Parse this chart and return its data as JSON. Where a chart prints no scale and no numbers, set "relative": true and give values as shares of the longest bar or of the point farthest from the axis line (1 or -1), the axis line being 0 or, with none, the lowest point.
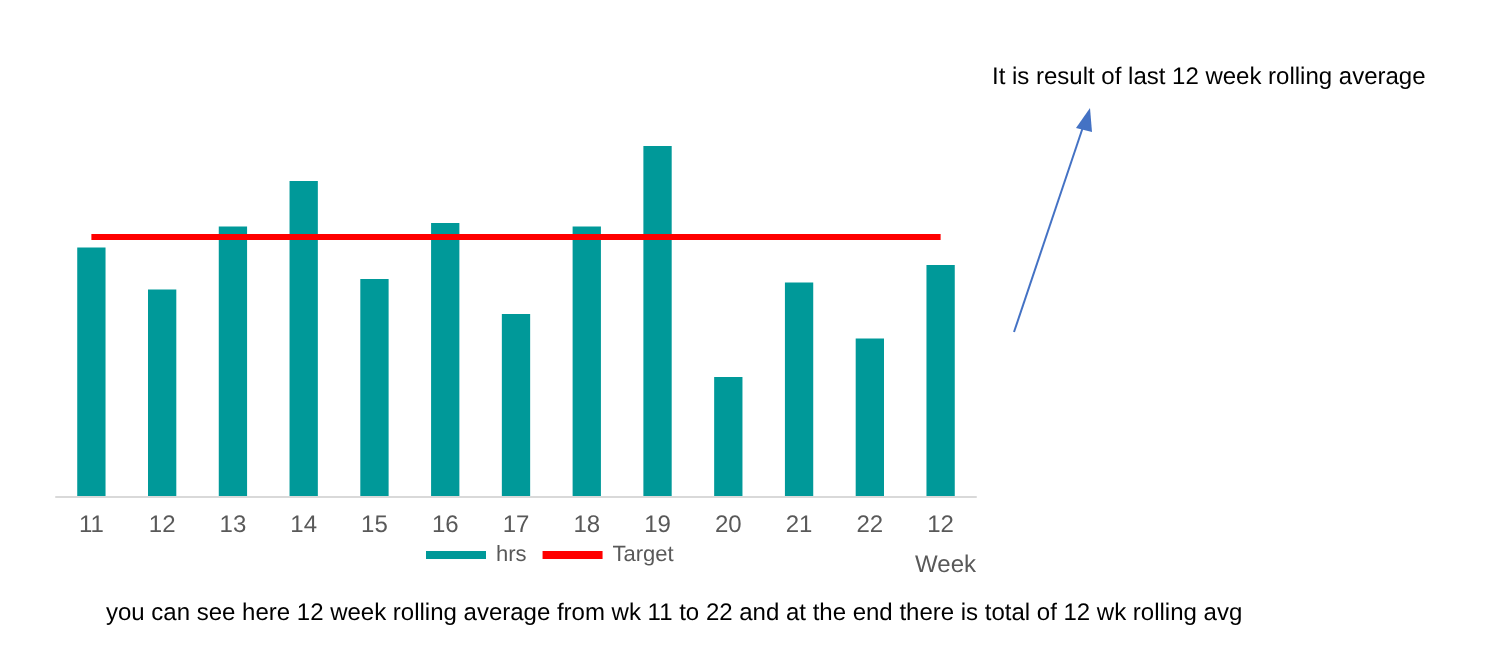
{
  "chart_data": {
    "type": "bar",
    "relative": true,
    "xlabel": "Week",
    "categories": [
      "11",
      "12",
      "13",
      "14",
      "15",
      "16",
      "17",
      "18",
      "19",
      "20",
      "21",
      "22",
      "12"
    ],
    "series": [
      {
        "name": "hrs",
        "color": "#009999",
        "values": [
          0.71,
          0.59,
          0.77,
          0.9,
          0.62,
          0.78,
          0.52,
          0.77,
          1,
          0.34,
          0.61,
          0.45,
          0.66
        ]
      },
      {
        "name": "Target",
        "type": "line",
        "color": "#ff0000",
        "values": [
          0.74,
          0.74,
          0.74,
          0.74,
          0.74,
          0.74,
          0.74,
          0.74,
          0.74,
          0.74,
          0.74,
          0.74,
          0.74
        ]
      }
    ],
    "annotations": [
      "It is result of last 12 week rolling average",
      "you can see here 12 week rolling average from wk 11 to 22 and at the end there is total of 12 wk rolling avg"
    ],
    "legend": "bottom",
    "grid": false,
    "marker": "none",
    "line_style": "solid"
  }
}
